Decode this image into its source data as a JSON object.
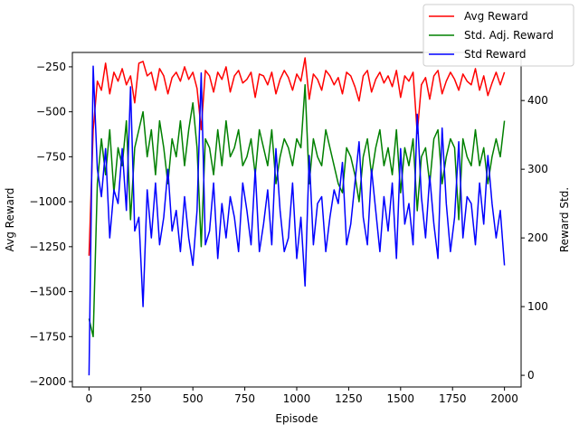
{
  "chart_data": {
    "type": "line",
    "xlabel": "Episode",
    "ylabel_left": "Avg Reward",
    "ylabel_right": "Reward Std.",
    "xlim": [
      -80,
      2080
    ],
    "ylim_left": [
      -2030,
      -170
    ],
    "ylim_right": [
      -17,
      470
    ],
    "xticks": [
      0,
      250,
      500,
      750,
      1000,
      1250,
      1500,
      1750,
      2000
    ],
    "yticks_left": [
      -2000,
      -1750,
      -1500,
      -1250,
      -1000,
      -750,
      -500,
      -250
    ],
    "yticks_right": [
      0,
      100,
      200,
      300,
      400
    ],
    "legend_position": "top-right",
    "series": [
      {
        "name": "Avg Reward",
        "axis": "left",
        "color": "#ff0000",
        "x": [
          0,
          20,
          40,
          60,
          80,
          100,
          120,
          140,
          160,
          180,
          200,
          220,
          240,
          260,
          280,
          300,
          320,
          340,
          360,
          380,
          400,
          420,
          440,
          460,
          480,
          500,
          520,
          540,
          560,
          580,
          600,
          620,
          640,
          660,
          680,
          700,
          720,
          740,
          760,
          780,
          800,
          820,
          840,
          860,
          880,
          900,
          920,
          940,
          960,
          980,
          1000,
          1020,
          1040,
          1060,
          1080,
          1100,
          1120,
          1140,
          1160,
          1180,
          1200,
          1220,
          1240,
          1260,
          1280,
          1300,
          1320,
          1340,
          1360,
          1380,
          1400,
          1420,
          1440,
          1460,
          1480,
          1500,
          1520,
          1540,
          1560,
          1580,
          1600,
          1620,
          1640,
          1660,
          1680,
          1700,
          1720,
          1740,
          1760,
          1780,
          1800,
          1820,
          1840,
          1860,
          1880,
          1900,
          1920,
          1940,
          1960,
          1980,
          2000
        ],
        "values": [
          -1300,
          -600,
          -330,
          -380,
          -230,
          -400,
          -280,
          -330,
          -260,
          -350,
          -300,
          -450,
          -230,
          -220,
          -300,
          -280,
          -380,
          -260,
          -300,
          -400,
          -310,
          -280,
          -330,
          -250,
          -320,
          -280,
          -370,
          -600,
          -270,
          -300,
          -390,
          -280,
          -320,
          -250,
          -390,
          -300,
          -270,
          -340,
          -320,
          -280,
          -420,
          -290,
          -300,
          -350,
          -280,
          -400,
          -320,
          -270,
          -310,
          -380,
          -290,
          -330,
          -200,
          -430,
          -290,
          -320,
          -380,
          -270,
          -300,
          -350,
          -310,
          -400,
          -280,
          -300,
          -360,
          -440,
          -300,
          -270,
          -390,
          -320,
          -280,
          -340,
          -300,
          -360,
          -270,
          -420,
          -300,
          -330,
          -280,
          -620,
          -350,
          -310,
          -430,
          -300,
          -270,
          -400,
          -330,
          -280,
          -320,
          -380,
          -290,
          -330,
          -350,
          -260,
          -380,
          -300,
          -410,
          -340,
          -280,
          -350,
          -280
        ]
      },
      {
        "name": "Std. Adj. Reward",
        "axis": "left",
        "color": "#008000",
        "x": [
          0,
          20,
          40,
          60,
          80,
          100,
          120,
          140,
          160,
          180,
          200,
          220,
          240,
          260,
          280,
          300,
          320,
          340,
          360,
          380,
          400,
          420,
          440,
          460,
          480,
          500,
          520,
          540,
          560,
          580,
          600,
          620,
          640,
          660,
          680,
          700,
          720,
          740,
          760,
          780,
          800,
          820,
          840,
          860,
          880,
          900,
          920,
          940,
          960,
          980,
          1000,
          1020,
          1040,
          1060,
          1080,
          1100,
          1120,
          1140,
          1160,
          1180,
          1200,
          1220,
          1240,
          1260,
          1280,
          1300,
          1320,
          1340,
          1360,
          1380,
          1400,
          1420,
          1440,
          1460,
          1480,
          1500,
          1520,
          1540,
          1560,
          1580,
          1600,
          1620,
          1640,
          1660,
          1680,
          1700,
          1720,
          1740,
          1760,
          1780,
          1800,
          1820,
          1840,
          1860,
          1880,
          1900,
          1920,
          1940,
          1960,
          1980,
          2000
        ],
        "values": [
          -1650,
          -1750,
          -900,
          -650,
          -850,
          -600,
          -950,
          -700,
          -800,
          -550,
          -1100,
          -700,
          -600,
          -500,
          -750,
          -600,
          -850,
          -550,
          -700,
          -900,
          -650,
          -750,
          -550,
          -800,
          -600,
          -450,
          -700,
          -1250,
          -650,
          -700,
          -850,
          -600,
          -800,
          -550,
          -750,
          -700,
          -600,
          -800,
          -750,
          -650,
          -850,
          -600,
          -700,
          -800,
          -600,
          -900,
          -750,
          -650,
          -700,
          -800,
          -650,
          -700,
          -350,
          -900,
          -650,
          -750,
          -800,
          -600,
          -700,
          -800,
          -900,
          -950,
          -700,
          -750,
          -850,
          -1000,
          -750,
          -650,
          -850,
          -700,
          -600,
          -800,
          -700,
          -850,
          -600,
          -950,
          -700,
          -800,
          -650,
          -1050,
          -750,
          -700,
          -900,
          -650,
          -600,
          -900,
          -750,
          -650,
          -700,
          -1100,
          -650,
          -750,
          -800,
          -600,
          -800,
          -700,
          -900,
          -750,
          -650,
          -750,
          -550
        ]
      },
      {
        "name": "Std Reward",
        "axis": "right",
        "color": "#0000ff",
        "x": [
          0,
          20,
          40,
          60,
          80,
          100,
          120,
          140,
          160,
          180,
          200,
          220,
          240,
          260,
          280,
          300,
          320,
          340,
          360,
          380,
          400,
          420,
          440,
          460,
          480,
          500,
          520,
          540,
          560,
          580,
          600,
          620,
          640,
          660,
          680,
          700,
          720,
          740,
          760,
          780,
          800,
          820,
          840,
          860,
          880,
          900,
          920,
          940,
          960,
          980,
          1000,
          1020,
          1040,
          1060,
          1080,
          1100,
          1120,
          1140,
          1160,
          1180,
          1200,
          1220,
          1240,
          1260,
          1280,
          1300,
          1320,
          1340,
          1360,
          1380,
          1400,
          1420,
          1440,
          1460,
          1480,
          1500,
          1520,
          1540,
          1560,
          1580,
          1600,
          1620,
          1640,
          1660,
          1680,
          1700,
          1720,
          1740,
          1760,
          1780,
          1800,
          1820,
          1840,
          1860,
          1880,
          1900,
          1920,
          1940,
          1960,
          1980,
          2000
        ],
        "values": [
          0,
          450,
          300,
          260,
          330,
          200,
          270,
          250,
          330,
          240,
          420,
          210,
          230,
          100,
          270,
          200,
          280,
          190,
          230,
          300,
          210,
          240,
          180,
          260,
          200,
          160,
          240,
          440,
          190,
          210,
          280,
          170,
          250,
          200,
          260,
          230,
          180,
          280,
          240,
          190,
          300,
          180,
          220,
          270,
          190,
          330,
          240,
          180,
          200,
          280,
          170,
          230,
          130,
          320,
          190,
          250,
          260,
          180,
          230,
          270,
          250,
          310,
          190,
          220,
          280,
          340,
          230,
          190,
          300,
          240,
          180,
          260,
          210,
          280,
          170,
          330,
          220,
          250,
          190,
          380,
          260,
          200,
          290,
          220,
          170,
          360,
          250,
          180,
          230,
          340,
          200,
          260,
          250,
          190,
          280,
          220,
          320,
          250,
          200,
          240,
          160
        ]
      }
    ]
  }
}
